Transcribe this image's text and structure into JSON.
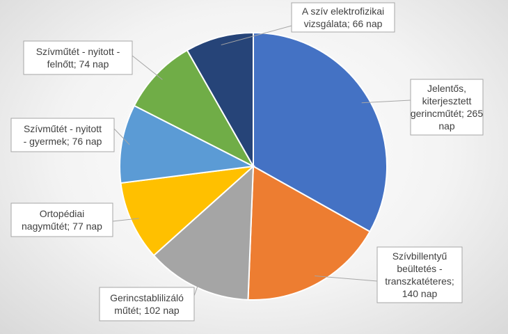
{
  "chart_data": {
    "type": "pie",
    "title": "",
    "unit": "nap",
    "slices": [
      {
        "label": "Jelentős, kiterjesztett gerincműtét",
        "value": 265,
        "color": "#4472c4",
        "callout": [
          "Jelentős,",
          "kiterjesztett",
          "gerincműtét; 265",
          "nap"
        ]
      },
      {
        "label": "Szívbillentyű beültetés - transzkatéteres",
        "value": 140,
        "color": "#ed7d31",
        "callout": [
          "Szívbillentyű",
          "beültetés -",
          "transzkatéteres;",
          "140 nap"
        ]
      },
      {
        "label": "Gerincstablilizáló műtét",
        "value": 102,
        "color": "#a5a5a5",
        "callout": [
          "Gerincstablilizáló",
          "műtét; 102 nap"
        ]
      },
      {
        "label": "Ortopédiai nagyműtét",
        "value": 77,
        "color": "#ffc000",
        "callout": [
          "Ortopédiai",
          "nagyműtét; 77 nap"
        ]
      },
      {
        "label": "Szívműtét - nyitott - gyermek",
        "value": 76,
        "color": "#5b9bd5",
        "callout": [
          "Szívműtét - nyitott",
          "- gyermek; 76 nap"
        ]
      },
      {
        "label": "Szívműtét - nyitott - felnőtt",
        "value": 74,
        "color": "#70ad47",
        "callout": [
          "Szívműtét - nyitott -",
          "felnőtt; 74 nap"
        ]
      },
      {
        "label": "A szív elektrofizikai vizsgálata",
        "value": 66,
        "color": "#264478",
        "callout": [
          "A szív elektrofizikai",
          "vizsgálata; 66 nap"
        ]
      }
    ]
  }
}
